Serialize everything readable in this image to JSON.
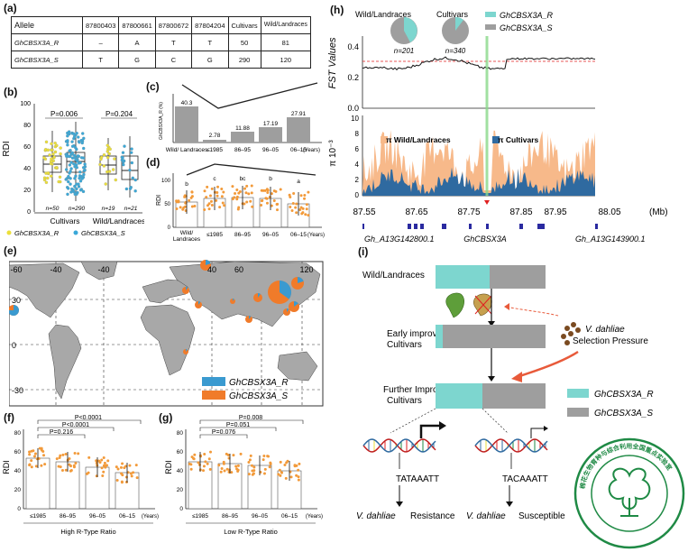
{
  "panels": [
    "(a)",
    "(b)",
    "(c)",
    "(d)",
    "(e)",
    "(f)",
    "(g)",
    "(h)",
    "(i)"
  ],
  "table": {
    "header": [
      "Allele",
      "87800403",
      "87800661",
      "87800672",
      "87804204",
      "Cultivars",
      "Wild/Landraces"
    ],
    "rows": [
      [
        "GhCBSX3A_R",
        "–",
        "A",
        "T",
        "T",
        "50",
        "81"
      ],
      [
        "GhCBSX3A_S",
        "T",
        "G",
        "C",
        "G",
        "290",
        "120"
      ]
    ]
  },
  "b": {
    "ylabel": "RDI",
    "yticks": [
      "0",
      "20",
      "40",
      "60",
      "80",
      "100"
    ],
    "p_cult": "P=0.006",
    "p_wild": "P=0.204",
    "n_labels": [
      "n=50",
      "n=290",
      "n=19",
      "n=21"
    ],
    "groups": [
      "Cultivars",
      "Wild/Landraces"
    ],
    "legend_r": "GhCBSX3A_R",
    "legend_s": "GhCBSX3A_S"
  },
  "c": {
    "ylabel": "GhCBSX3A_R (%)",
    "values": [
      "40.3",
      "2.78",
      "11.88",
      "17.19",
      "27.91"
    ]
  },
  "d": {
    "ylabel": "RDI",
    "yticks": [
      "0",
      "50",
      "100"
    ],
    "letters": [
      "b",
      "c",
      "bc",
      "b",
      "a"
    ],
    "xticks": [
      "Wild/ Landraces",
      "≤1985",
      "86–95",
      "96–05",
      "06–15"
    ],
    "xunit": "(Years)"
  },
  "e": {
    "lon_ticks": [
      "-60",
      "-40",
      "40",
      "60",
      "120"
    ],
    "lat_ticks": [
      "30",
      "0",
      "-30"
    ],
    "legend_r": "GhCBSX3A_R",
    "legend_s": "GhCBSX3A_S"
  },
  "f": {
    "ylabel": "RDI",
    "yticks": [
      "0",
      "20",
      "40",
      "60",
      "80"
    ],
    "pvals": [
      "P<0.0001",
      "P<0.0001",
      "P=0.216"
    ],
    "xticks": [
      "≤1985",
      "86–95",
      "96–05",
      "06–15"
    ],
    "xunit": "(Years)",
    "xlabel": "High R-Type Ratio"
  },
  "g": {
    "ylabel": "RDI",
    "yticks": [
      "0",
      "20",
      "40",
      "60",
      "80"
    ],
    "pvals": [
      "P=0.008",
      "P=0.051",
      "P=0.076"
    ],
    "xticks": [
      "≤1985",
      "86–95",
      "96–05",
      "06–15"
    ],
    "xunit": "(Years)",
    "xlabel": "Low R-Type Ratio"
  },
  "h": {
    "pie_wild_title": "Wild/Landraces",
    "pie_cult_title": "Cultivars",
    "pie_wild_n": "n=201",
    "pie_cult_n": "n=340",
    "legend_r": "GhCBSX3A_R",
    "legend_s": "GhCBSX3A_S",
    "fst_label": "FST Values",
    "fst_yticks": [
      "0.0",
      "0.2",
      "0.4"
    ],
    "pi_label": "π 10⁻³",
    "pi_yticks": [
      "0",
      "2",
      "4",
      "6",
      "8",
      "10"
    ],
    "pi_legend_wild": "π Wild/Landraces",
    "pi_legend_cult": "π Cultivars",
    "xticks": [
      "87.55",
      "87.65",
      "87.75",
      "87.85",
      "87.95",
      "88.05"
    ],
    "xunit": "(Mb)",
    "gene_left": "Gh_A13G142800.1",
    "gene_mid": "GhCBSX3A",
    "gene_right": "Gh_A13G143900.1"
  },
  "i": {
    "rows": [
      "Wild/Landraces",
      "Early improved Cultivars",
      "Further Improved Cultivars"
    ],
    "pressure_pathogen": "V. dahliae",
    "pressure_label": "Selection Pressure",
    "legend_r": "GhCBSX3A_R",
    "legend_s": "GhCBSX3A_S",
    "seq_left": "TATAAATT",
    "seq_right": "TACAAATT",
    "res_pathogen": "V. dahliae",
    "res_label": "Resistance",
    "sus_pathogen": "V. dahliae",
    "sus_label": "Susceptible"
  },
  "colors": {
    "teal": "#7dd6cf",
    "gray": "#9e9e9e",
    "orange": "#f07b2a",
    "yellow": "#ecdf3a",
    "blue": "#3aa8d8",
    "green": "#1f8a45",
    "pi_wild": "#f7b98a",
    "pi_cult": "#2f6aa0",
    "fst_red": "#e02020"
  }
}
